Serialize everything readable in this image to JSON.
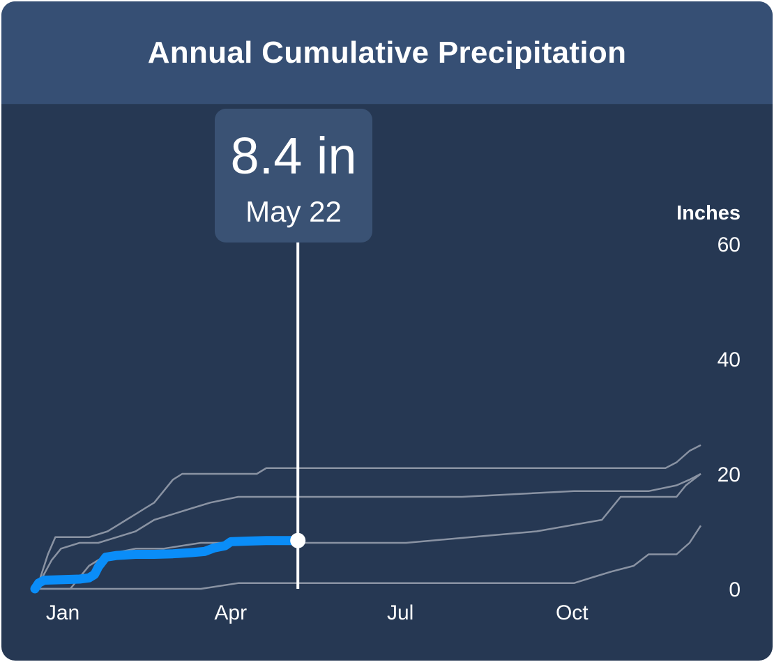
{
  "chart_data": {
    "type": "line",
    "title": "Annual Cumulative Precipitation",
    "ylabel": "Inches",
    "ylim": [
      0,
      60
    ],
    "y_ticks": [
      0,
      20,
      40,
      60
    ],
    "x_ticks": [
      {
        "label": "Jan",
        "day": 1
      },
      {
        "label": "Apr",
        "day": 91
      },
      {
        "label": "Jul",
        "day": 182
      },
      {
        "label": "Oct",
        "day": 274
      }
    ],
    "grid": false,
    "series": [
      {
        "highlight": false,
        "points": [
          [
            1,
            0
          ],
          [
            4,
            2
          ],
          [
            8,
            6
          ],
          [
            12,
            9
          ],
          [
            30,
            9
          ],
          [
            40,
            10
          ],
          [
            45,
            11
          ],
          [
            50,
            12
          ],
          [
            55,
            13
          ],
          [
            60,
            14
          ],
          [
            65,
            15
          ],
          [
            70,
            17
          ],
          [
            75,
            19
          ],
          [
            80,
            20
          ],
          [
            100,
            20
          ],
          [
            120,
            20
          ],
          [
            125,
            21
          ],
          [
            150,
            21
          ],
          [
            200,
            21
          ],
          [
            250,
            21
          ],
          [
            300,
            21
          ],
          [
            339,
            21
          ],
          [
            345,
            22
          ],
          [
            352,
            24
          ],
          [
            358,
            25
          ]
        ]
      },
      {
        "highlight": false,
        "points": [
          [
            1,
            0
          ],
          [
            5,
            2
          ],
          [
            10,
            5
          ],
          [
            15,
            7
          ],
          [
            25,
            8
          ],
          [
            35,
            8
          ],
          [
            45,
            9
          ],
          [
            55,
            10
          ],
          [
            65,
            12
          ],
          [
            75,
            13
          ],
          [
            85,
            14
          ],
          [
            95,
            15
          ],
          [
            110,
            16
          ],
          [
            130,
            16
          ],
          [
            175,
            16
          ],
          [
            230,
            16
          ],
          [
            290,
            17
          ],
          [
            330,
            17
          ],
          [
            345,
            18
          ],
          [
            352,
            19
          ],
          [
            358,
            20
          ]
        ]
      },
      {
        "highlight": false,
        "points": [
          [
            1,
            0
          ],
          [
            20,
            0
          ],
          [
            30,
            4
          ],
          [
            40,
            6
          ],
          [
            55,
            7
          ],
          [
            70,
            7
          ],
          [
            90,
            8
          ],
          [
            110,
            8
          ],
          [
            140,
            8
          ],
          [
            180,
            8
          ],
          [
            200,
            8
          ],
          [
            235,
            9
          ],
          [
            270,
            10
          ],
          [
            305,
            12
          ],
          [
            315,
            16
          ],
          [
            345,
            16
          ],
          [
            350,
            18
          ],
          [
            358,
            20
          ]
        ]
      },
      {
        "highlight": false,
        "points": [
          [
            1,
            0
          ],
          [
            50,
            0
          ],
          [
            90,
            0
          ],
          [
            110,
            1
          ],
          [
            150,
            1
          ],
          [
            200,
            1
          ],
          [
            250,
            1
          ],
          [
            290,
            1
          ],
          [
            300,
            2
          ],
          [
            310,
            3
          ],
          [
            322,
            4
          ],
          [
            330,
            6
          ],
          [
            345,
            6
          ],
          [
            352,
            8
          ],
          [
            358,
            11
          ]
        ]
      },
      {
        "highlight": true,
        "points": [
          [
            1,
            0
          ],
          [
            3,
            1
          ],
          [
            6,
            1.5
          ],
          [
            25,
            1.7
          ],
          [
            30,
            1.9
          ],
          [
            33,
            2.5
          ],
          [
            35,
            3.8
          ],
          [
            39,
            5.5
          ],
          [
            45,
            5.8
          ],
          [
            55,
            6
          ],
          [
            65,
            6
          ],
          [
            75,
            6.1
          ],
          [
            85,
            6.3
          ],
          [
            92,
            6.5
          ],
          [
            97,
            7.1
          ],
          [
            103,
            7.5
          ],
          [
            106,
            8.2
          ],
          [
            115,
            8.3
          ],
          [
            125,
            8.4
          ],
          [
            142,
            8.4
          ]
        ]
      }
    ],
    "selection": {
      "day": 142,
      "value": 8.4,
      "value_label": "8.4 in",
      "date_label": "May 22"
    }
  },
  "colors": {
    "background": "#263853",
    "header": "#364f74",
    "line": "#8a93a3",
    "highlight": "#0a8df8",
    "text": "#ffffff"
  }
}
